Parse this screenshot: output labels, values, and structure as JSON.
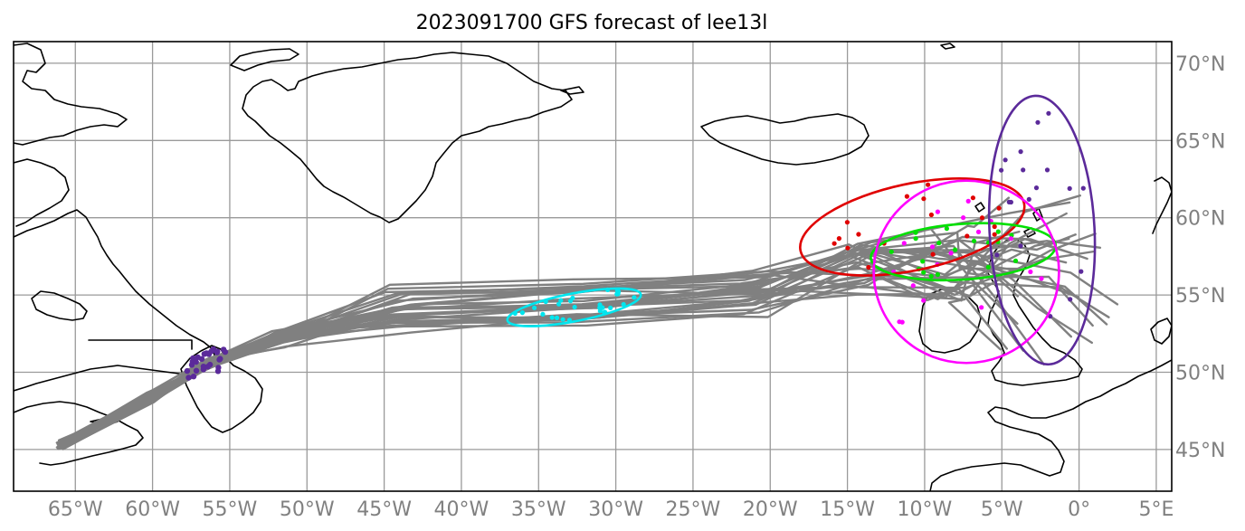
{
  "map": {
    "title": "2023091700 GFS forecast of lee13l",
    "lon_range": [
      -69,
      6
    ],
    "lat_range": [
      42.3,
      71.4
    ],
    "projection": "plate carree",
    "grid": true,
    "lon_ticks": [
      {
        "value": -65,
        "label": "65°W"
      },
      {
        "value": -60,
        "label": "60°W"
      },
      {
        "value": -55,
        "label": "55°W"
      },
      {
        "value": -50,
        "label": "50°W"
      },
      {
        "value": -45,
        "label": "45°W"
      },
      {
        "value": -40,
        "label": "40°W"
      },
      {
        "value": -35,
        "label": "35°W"
      },
      {
        "value": -30,
        "label": "30°W"
      },
      {
        "value": -25,
        "label": "25°W"
      },
      {
        "value": -20,
        "label": "20°W"
      },
      {
        "value": -15,
        "label": "15°W"
      },
      {
        "value": -10,
        "label": "10°W"
      },
      {
        "value": -5,
        "label": "5°W"
      },
      {
        "value": 0,
        "label": "0°"
      },
      {
        "value": 5,
        "label": "5°E"
      }
    ],
    "lat_ticks": [
      {
        "value": 45,
        "label": "45°N"
      },
      {
        "value": 50,
        "label": "50°N"
      },
      {
        "value": 55,
        "label": "55°N"
      },
      {
        "value": 60,
        "label": "60°N"
      },
      {
        "value": 65,
        "label": "65°N"
      },
      {
        "value": 70,
        "label": "70°N"
      }
    ],
    "colors": {
      "track": "#808080",
      "grid": "#9a9a9a",
      "coast": "#000000",
      "cyan": "#00e5ee",
      "indigo": "#5b2a9a",
      "red": "#e00000",
      "lime": "#00e000",
      "magenta": "#ff00ff"
    },
    "ellipses": [
      {
        "color": "cyan",
        "center": [
          -32.7,
          54.2
        ],
        "semi_lon": 4.4,
        "semi_lat": 0.9,
        "angle_deg": 11
      },
      {
        "color": "red",
        "center": [
          -10.8,
          59.4
        ],
        "semi_lon": 7.4,
        "semi_lat": 2.8,
        "angle_deg": 12
      },
      {
        "color": "lime",
        "center": [
          -7.5,
          57.8
        ],
        "semi_lon": 6.0,
        "semi_lat": 1.8,
        "angle_deg": 4
      },
      {
        "color": "magenta",
        "center": [
          -7.3,
          56.5
        ],
        "semi_lon": 6.0,
        "semi_lat": 5.9,
        "angle_deg": 0
      },
      {
        "color": "indigo",
        "center": [
          -2.4,
          59.2
        ],
        "semi_lon": 3.4,
        "semi_lat": 8.7,
        "angle_deg": 3
      }
    ]
  }
}
